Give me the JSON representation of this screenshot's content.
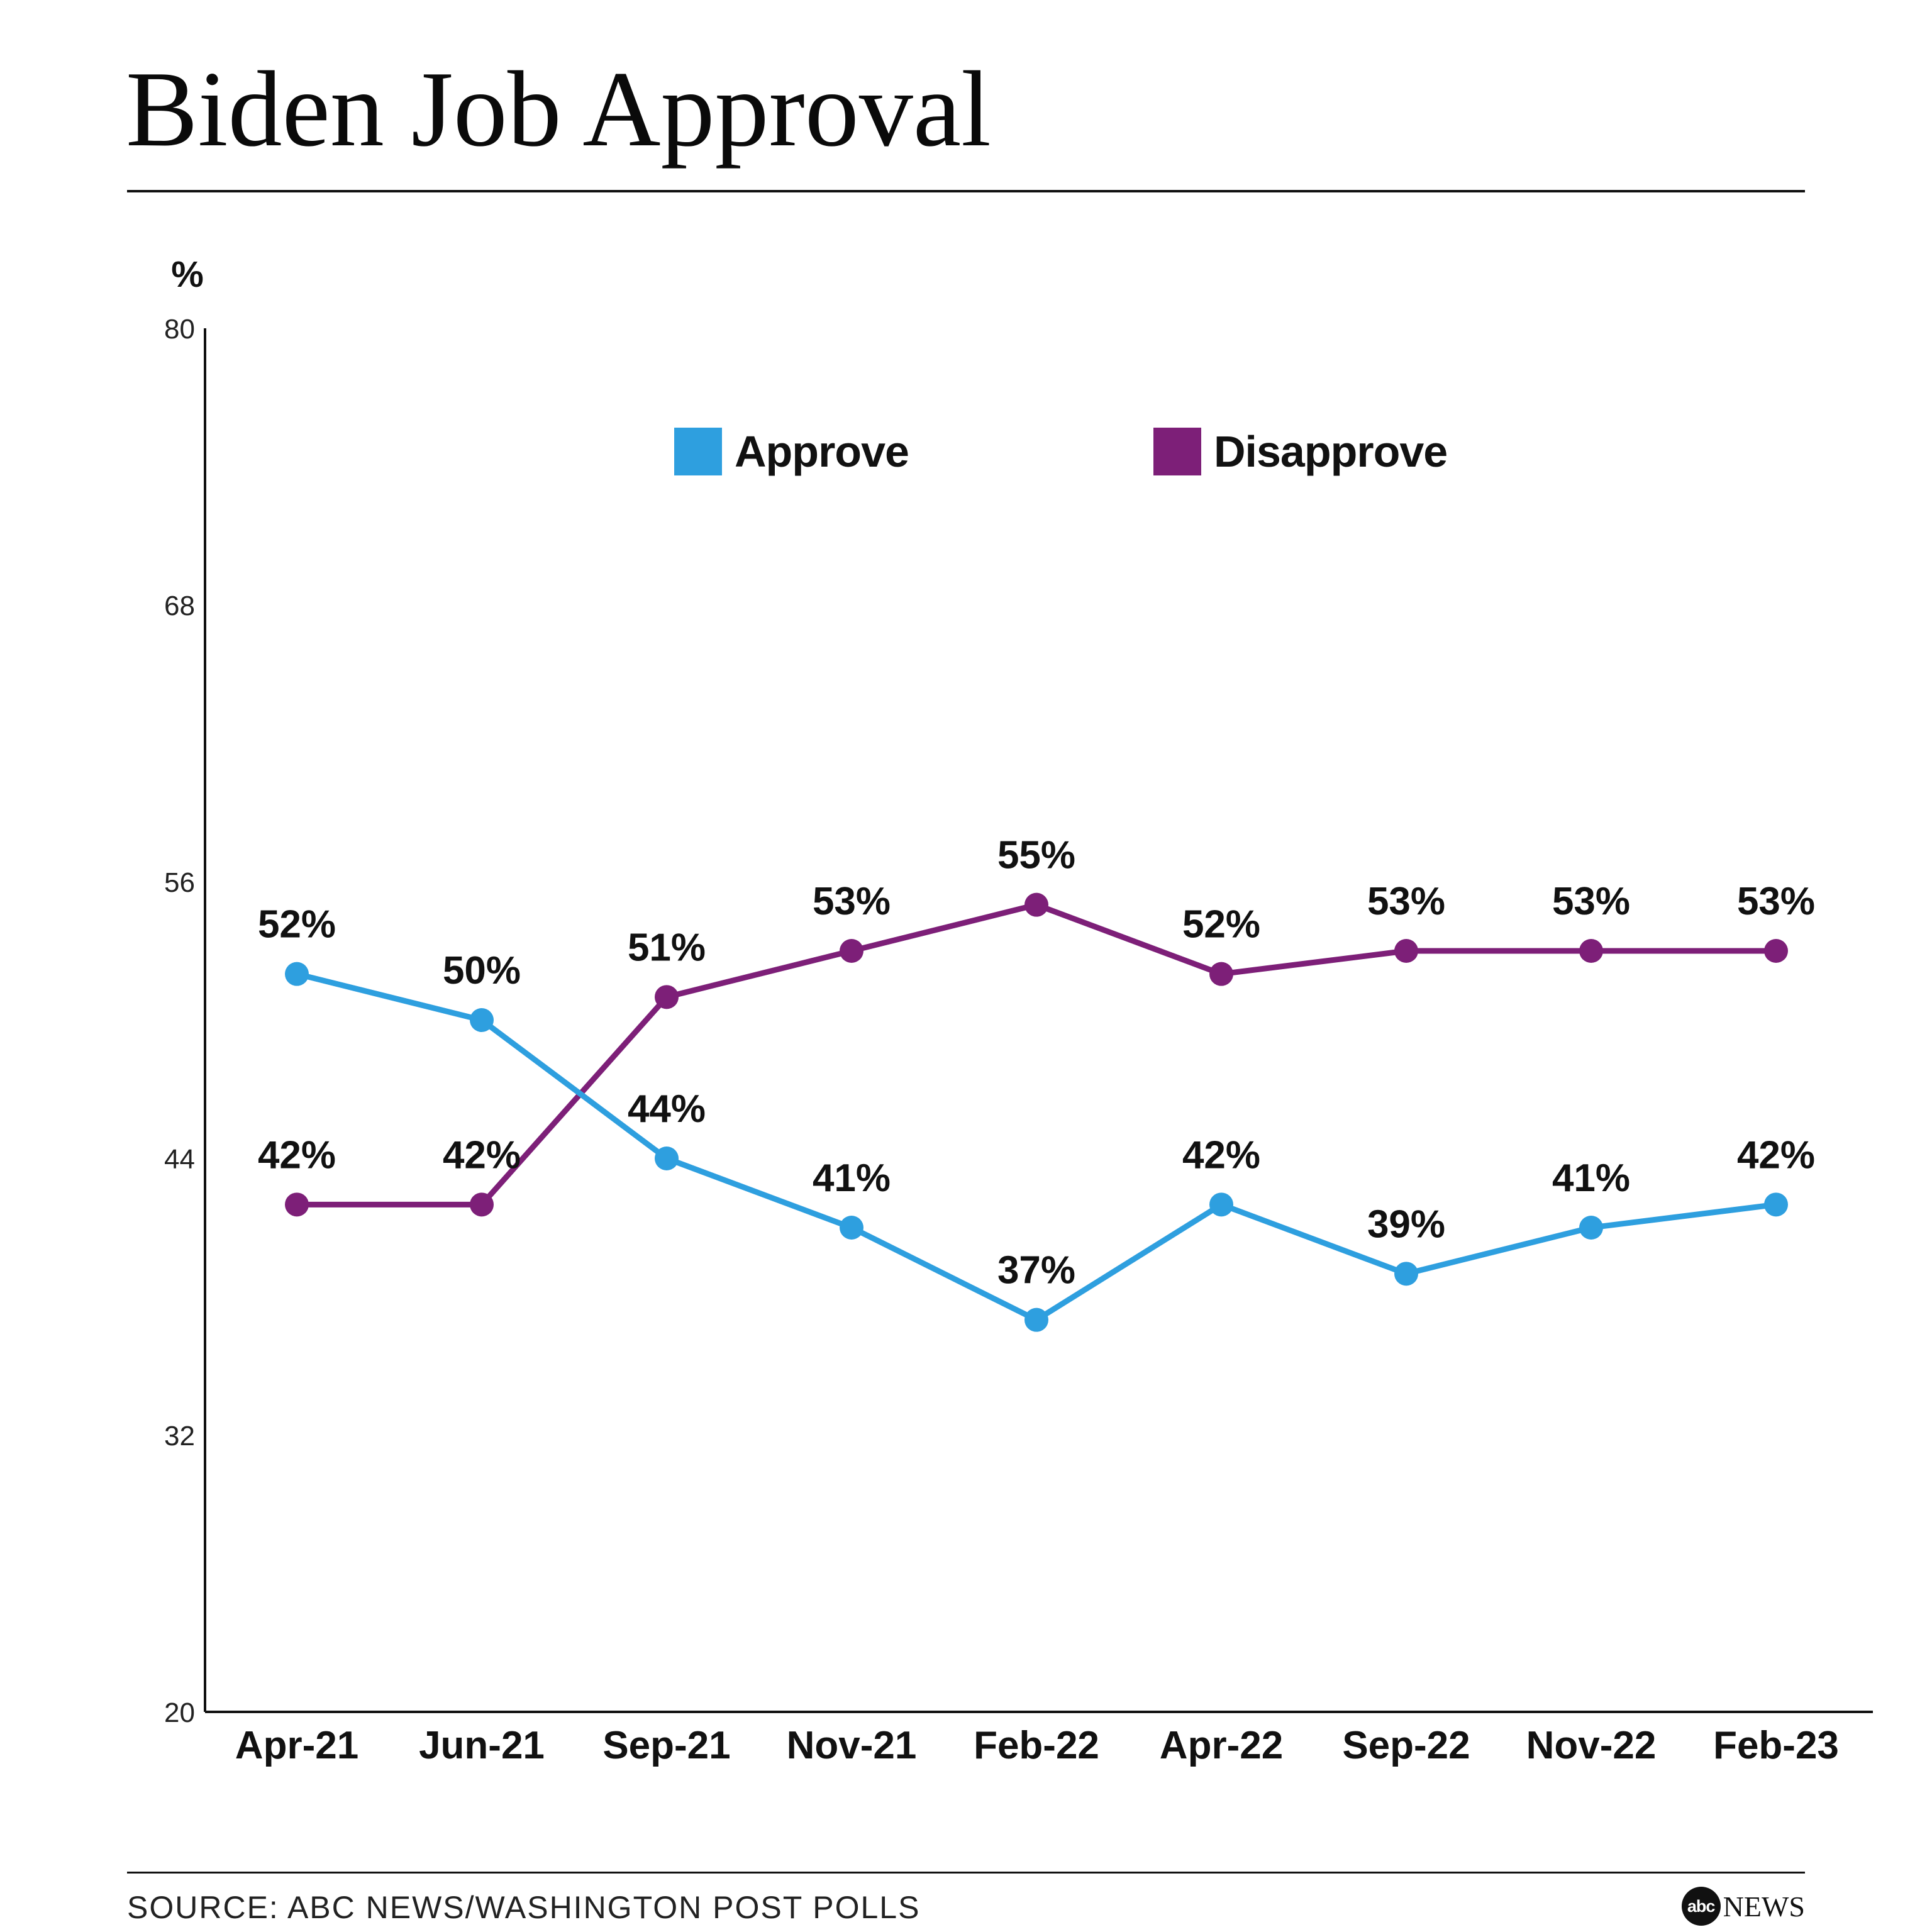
{
  "header": {
    "title": "Biden Job Approval"
  },
  "footer": {
    "source": "SOURCE: ABC NEWS/WASHINGTON POST POLLS",
    "logo_mark": "abc",
    "logo_word": "NEWS"
  },
  "colors": {
    "approve": "#2e9fdf",
    "disapprove": "#7d1f78",
    "axis": "#111111",
    "text": "#111111"
  },
  "chart_data": {
    "type": "line",
    "title": "Biden Job Approval",
    "ylabel": "%",
    "xlabel": "",
    "ylim": [
      20,
      80
    ],
    "yticks": [
      20,
      32,
      44,
      56,
      68,
      80
    ],
    "grid": false,
    "legend_position": "top-center",
    "categories": [
      "Apr-21",
      "Jun-21",
      "Sep-21",
      "Nov-21",
      "Feb-22",
      "Apr-22",
      "Sep-22",
      "Nov-22",
      "Feb-23"
    ],
    "series": [
      {
        "name": "Approve",
        "color": "#2e9fdf",
        "values": [
          52,
          50,
          44,
          41,
          37,
          42,
          39,
          41,
          42
        ],
        "labels": [
          "52%",
          "50%",
          "44%",
          "41%",
          "37%",
          "42%",
          "39%",
          "41%",
          "42%"
        ]
      },
      {
        "name": "Disapprove",
        "color": "#7d1f78",
        "values": [
          42,
          42,
          51,
          53,
          55,
          52,
          53,
          53,
          53
        ],
        "labels": [
          "42%",
          "42%",
          "51%",
          "53%",
          "55%",
          "52%",
          "53%",
          "53%",
          "53%"
        ]
      }
    ]
  }
}
